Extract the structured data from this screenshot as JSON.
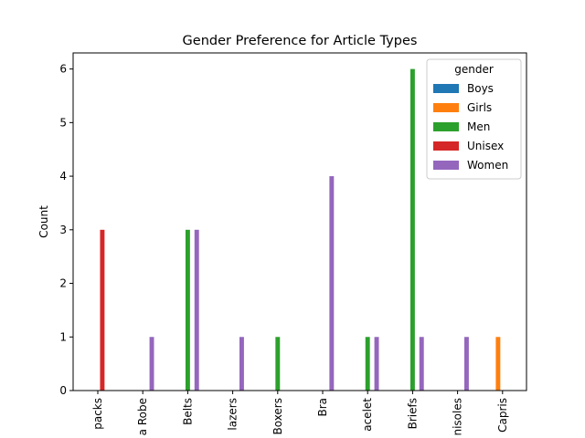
{
  "chart_data": {
    "type": "bar",
    "title": "Gender Preference for Article Types",
    "xlabel": "",
    "ylabel": "Count",
    "ylim": [
      0,
      6.3
    ],
    "yticks": [
      0,
      1,
      2,
      3,
      4,
      5,
      6
    ],
    "categories": [
      "packs",
      "a Robe",
      "Belts",
      "lazers",
      "Boxers",
      "Bra",
      "acelet",
      "Briefs",
      "nisoles",
      "Capris"
    ],
    "legend_title": "gender",
    "legend_position": "top-right",
    "grid": false,
    "series": [
      {
        "name": "Boys",
        "color": "#1f77b4",
        "values": [
          0,
          0,
          0,
          0,
          0,
          0,
          0,
          0,
          0,
          0
        ]
      },
      {
        "name": "Girls",
        "color": "#ff7f0e",
        "values": [
          0,
          0,
          0,
          0,
          0,
          0,
          0,
          0,
          0,
          1
        ]
      },
      {
        "name": "Men",
        "color": "#2ca02c",
        "values": [
          0,
          0,
          3,
          0,
          1,
          0,
          1,
          6,
          0,
          0
        ]
      },
      {
        "name": "Unisex",
        "color": "#d62728",
        "values": [
          3,
          0,
          0,
          0,
          0,
          0,
          0,
          0,
          0,
          0
        ]
      },
      {
        "name": "Women",
        "color": "#9467bd",
        "values": [
          0,
          1,
          3,
          1,
          0,
          4,
          1,
          1,
          1,
          0
        ]
      }
    ]
  }
}
